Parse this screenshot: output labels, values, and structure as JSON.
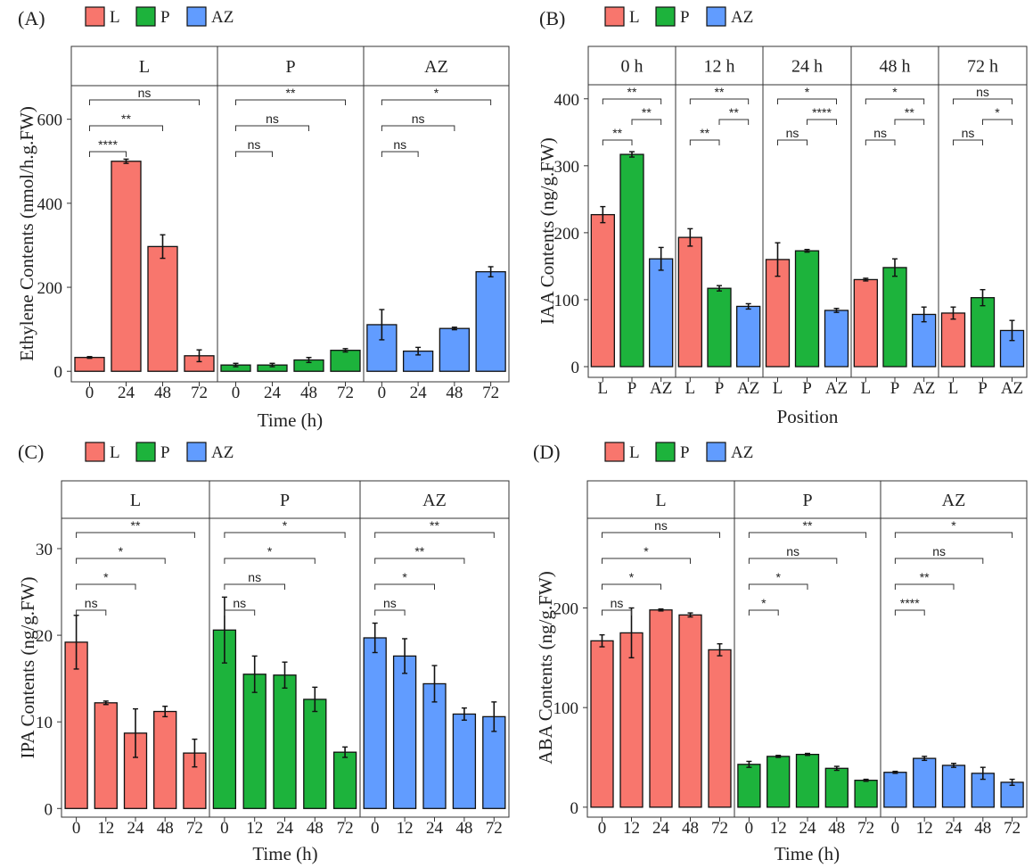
{
  "colors": {
    "L": "#F8766D",
    "P": "#1DB33C",
    "AZ": "#619CFF"
  },
  "chart_data": [
    {
      "id": "A",
      "label": "(A)",
      "type": "bar",
      "legend": [
        "L",
        "P",
        "AZ"
      ],
      "ylabel": "Ethylene Contents (nmol/h.g.FW)",
      "xlabel": "Time (h)",
      "ylim": [
        -25,
        680
      ],
      "yticks": [
        0,
        200,
        400,
        600
      ],
      "facets": [
        {
          "title": "L",
          "series": "L",
          "categories": [
            "0",
            "24",
            "48",
            "72"
          ],
          "values": [
            33,
            500,
            297,
            37
          ],
          "errors": [
            2,
            5,
            28,
            14
          ],
          "comparisons": [
            {
              "target": "24",
              "label": "****"
            },
            {
              "target": "48",
              "label": "**"
            },
            {
              "target": "72",
              "label": "ns"
            }
          ]
        },
        {
          "title": "P",
          "series": "P",
          "categories": [
            "0",
            "24",
            "48",
            "72"
          ],
          "values": [
            15,
            15,
            27,
            50
          ],
          "errors": [
            4,
            4,
            6,
            4
          ],
          "comparisons": [
            {
              "target": "24",
              "label": "ns"
            },
            {
              "target": "48",
              "label": "ns"
            },
            {
              "target": "72",
              "label": "**"
            }
          ]
        },
        {
          "title": "AZ",
          "series": "AZ",
          "categories": [
            "0",
            "24",
            "48",
            "72"
          ],
          "values": [
            111,
            48,
            102,
            237
          ],
          "errors": [
            36,
            9,
            3,
            12
          ],
          "comparisons": [
            {
              "target": "24",
              "label": "ns"
            },
            {
              "target": "48",
              "label": "ns"
            },
            {
              "target": "72",
              "label": "*"
            }
          ]
        }
      ]
    },
    {
      "id": "B",
      "label": "(B)",
      "type": "bar",
      "legend": [
        "L",
        "P",
        "AZ"
      ],
      "ylabel": "IAA Contents (ng/g.FW)",
      "xlabel": "Position",
      "ylim": [
        -16,
        421
      ],
      "yticks": [
        0,
        100,
        200,
        300,
        400
      ],
      "facets": [
        {
          "title": "0 h",
          "categories": [
            "L",
            "P",
            "AZ"
          ],
          "values": [
            227,
            317,
            161
          ],
          "errors": [
            12,
            4,
            17
          ],
          "comparisons": [
            {
              "from": "L",
              "to": "P",
              "label": "**"
            },
            {
              "from": "P",
              "to": "AZ",
              "label": "**"
            },
            {
              "from": "L",
              "to": "AZ",
              "label": "**"
            }
          ]
        },
        {
          "title": "12 h",
          "categories": [
            "L",
            "P",
            "AZ"
          ],
          "values": [
            193,
            117,
            90
          ],
          "errors": [
            13,
            4,
            4
          ],
          "comparisons": [
            {
              "from": "L",
              "to": "P",
              "label": "**"
            },
            {
              "from": "P",
              "to": "AZ",
              "label": "**"
            },
            {
              "from": "L",
              "to": "AZ",
              "label": "**"
            }
          ]
        },
        {
          "title": "24 h",
          "categories": [
            "L",
            "P",
            "AZ"
          ],
          "values": [
            160,
            173,
            84
          ],
          "errors": [
            25,
            2,
            3
          ],
          "comparisons": [
            {
              "from": "L",
              "to": "P",
              "label": "ns"
            },
            {
              "from": "P",
              "to": "AZ",
              "label": "****"
            },
            {
              "from": "L",
              "to": "AZ",
              "label": "*"
            }
          ]
        },
        {
          "title": "48 h",
          "categories": [
            "L",
            "P",
            "AZ"
          ],
          "values": [
            130,
            148,
            78
          ],
          "errors": [
            2,
            13,
            11
          ],
          "comparisons": [
            {
              "from": "L",
              "to": "P",
              "label": "ns"
            },
            {
              "from": "P",
              "to": "AZ",
              "label": "**"
            },
            {
              "from": "L",
              "to": "AZ",
              "label": "*"
            }
          ]
        },
        {
          "title": "72 h",
          "categories": [
            "L",
            "P",
            "AZ"
          ],
          "values": [
            80,
            103,
            54
          ],
          "errors": [
            9,
            12,
            15
          ],
          "comparisons": [
            {
              "from": "L",
              "to": "P",
              "label": "ns"
            },
            {
              "from": "P",
              "to": "AZ",
              "label": "*"
            },
            {
              "from": "L",
              "to": "AZ",
              "label": "ns"
            }
          ]
        }
      ]
    },
    {
      "id": "C",
      "label": "(C)",
      "type": "bar",
      "legend": [
        "L",
        "P",
        "AZ"
      ],
      "ylabel": "IPA Contents (ng/g.FW)",
      "xlabel": "Time (h)",
      "ylim": [
        -1,
        33.5
      ],
      "yticks": [
        0,
        10,
        20,
        30
      ],
      "facets": [
        {
          "title": "L",
          "series": "L",
          "categories": [
            "0",
            "12",
            "24",
            "48",
            "72"
          ],
          "values": [
            19.2,
            12.2,
            8.7,
            11.2,
            6.4
          ],
          "errors": [
            3.1,
            0.2,
            2.8,
            0.6,
            1.6
          ],
          "comparisons": [
            {
              "target": "12",
              "label": "ns"
            },
            {
              "target": "24",
              "label": "*"
            },
            {
              "target": "48",
              "label": "*"
            },
            {
              "target": "72",
              "label": "**"
            }
          ]
        },
        {
          "title": "P",
          "series": "P",
          "categories": [
            "0",
            "12",
            "24",
            "48",
            "72"
          ],
          "values": [
            20.6,
            15.5,
            15.4,
            12.6,
            6.5
          ],
          "errors": [
            3.8,
            2.1,
            1.5,
            1.4,
            0.6
          ],
          "comparisons": [
            {
              "target": "12",
              "label": "ns"
            },
            {
              "target": "24",
              "label": "ns"
            },
            {
              "target": "48",
              "label": "*"
            },
            {
              "target": "72",
              "label": "*"
            }
          ]
        },
        {
          "title": "AZ",
          "series": "AZ",
          "categories": [
            "0",
            "12",
            "24",
            "48",
            "72"
          ],
          "values": [
            19.7,
            17.6,
            14.4,
            10.9,
            10.6
          ],
          "errors": [
            1.7,
            2.0,
            2.1,
            0.7,
            1.7
          ],
          "comparisons": [
            {
              "target": "12",
              "label": "ns"
            },
            {
              "target": "24",
              "label": "*"
            },
            {
              "target": "48",
              "label": "**"
            },
            {
              "target": "72",
              "label": "**"
            }
          ]
        }
      ]
    },
    {
      "id": "D",
      "label": "(D)",
      "type": "bar",
      "legend": [
        "L",
        "P",
        "AZ"
      ],
      "ylabel": "ABA Contents (ng/g.FW)",
      "xlabel": "Time (h)",
      "ylim": [
        -10,
        290
      ],
      "yticks": [
        0,
        100,
        200
      ],
      "facets": [
        {
          "title": "L",
          "series": "L",
          "categories": [
            "0",
            "12",
            "24",
            "48",
            "72"
          ],
          "values": [
            167,
            175,
            198,
            193,
            158
          ],
          "errors": [
            6,
            25,
            1,
            2,
            6
          ],
          "comparisons": [
            {
              "target": "12",
              "label": "ns"
            },
            {
              "target": "24",
              "label": "*"
            },
            {
              "target": "48",
              "label": "*"
            },
            {
              "target": "72",
              "label": "ns"
            }
          ]
        },
        {
          "title": "P",
          "series": "P",
          "categories": [
            "0",
            "12",
            "24",
            "48",
            "72"
          ],
          "values": [
            43,
            51,
            53,
            39,
            27
          ],
          "errors": [
            3,
            1,
            1,
            2,
            1
          ],
          "comparisons": [
            {
              "target": "12",
              "label": "*"
            },
            {
              "target": "24",
              "label": "*"
            },
            {
              "target": "48",
              "label": "ns"
            },
            {
              "target": "72",
              "label": "**"
            }
          ]
        },
        {
          "title": "AZ",
          "series": "AZ",
          "categories": [
            "0",
            "12",
            "24",
            "48",
            "72"
          ],
          "values": [
            35,
            49,
            42,
            34,
            25
          ],
          "errors": [
            1,
            2,
            2,
            6,
            3
          ],
          "comparisons": [
            {
              "target": "12",
              "label": "****"
            },
            {
              "target": "24",
              "label": "**"
            },
            {
              "target": "48",
              "label": "ns"
            },
            {
              "target": "72",
              "label": "*"
            }
          ]
        }
      ]
    }
  ]
}
